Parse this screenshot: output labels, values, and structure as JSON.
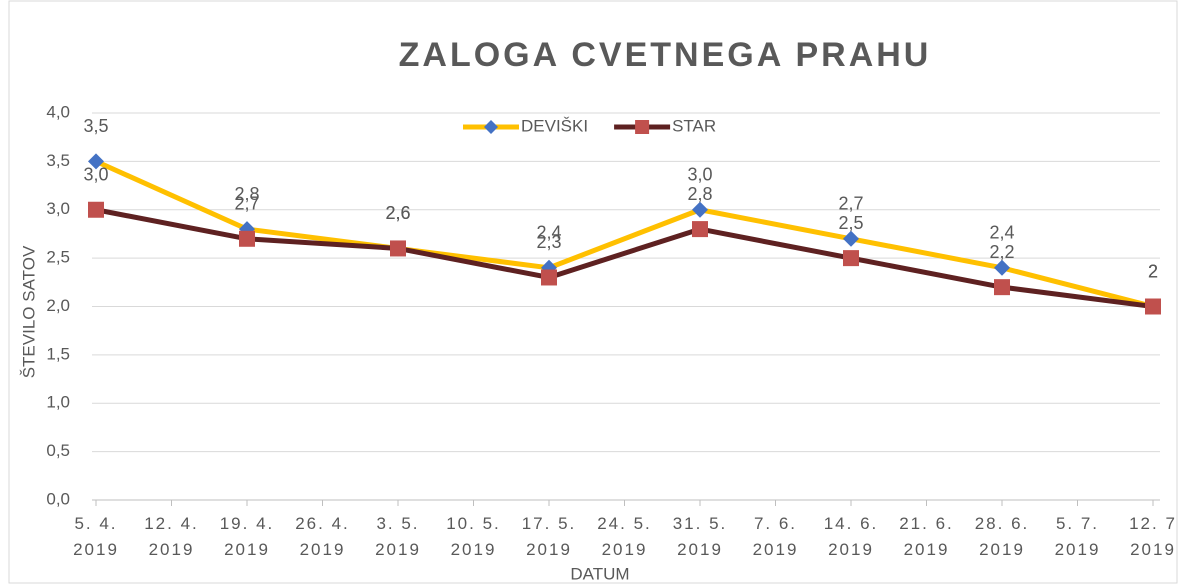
{
  "chart_data": {
    "type": "line",
    "title": "ZALOGA CVETNEGA PRAHU",
    "x_label": "DATUM",
    "y_label": "ŠTEVILO SATOV",
    "x": [
      "2019-04-05",
      "2019-04-19",
      "2019-05-03",
      "2019-05-17",
      "2019-05-31",
      "2019-06-14",
      "2019-06-28",
      "2019-07-12"
    ],
    "xlim": [
      "2019-04-05",
      "2019-07-12"
    ],
    "xticks": [
      {
        "value": "2019-04-05",
        "label": "5. 4. 2019"
      },
      {
        "value": "2019-04-12",
        "label": "12. 4. 2019"
      },
      {
        "value": "2019-04-19",
        "label": "19. 4. 2019"
      },
      {
        "value": "2019-04-26",
        "label": "26. 4. 2019"
      },
      {
        "value": "2019-05-03",
        "label": "3. 5. 2019"
      },
      {
        "value": "2019-05-10",
        "label": "10. 5. 2019"
      },
      {
        "value": "2019-05-17",
        "label": "17. 5. 2019"
      },
      {
        "value": "2019-05-24",
        "label": "24. 5. 2019"
      },
      {
        "value": "2019-05-31",
        "label": "31. 5. 2019"
      },
      {
        "value": "2019-06-07",
        "label": "7. 6. 2019"
      },
      {
        "value": "2019-06-14",
        "label": "14. 6. 2019"
      },
      {
        "value": "2019-06-21",
        "label": "21. 6. 2019"
      },
      {
        "value": "2019-06-28",
        "label": "28. 6. 2019"
      },
      {
        "value": "2019-07-05",
        "label": "5. 7. 2019"
      },
      {
        "value": "2019-07-12",
        "label": "12. 7 2019"
      }
    ],
    "ylim": [
      0,
      4
    ],
    "yticks": [
      {
        "value": 0,
        "label": "0,0"
      },
      {
        "value": 0.5,
        "label": "0,5"
      },
      {
        "value": 1,
        "label": "1,0"
      },
      {
        "value": 1.5,
        "label": "1,5"
      },
      {
        "value": 2,
        "label": "2,0"
      },
      {
        "value": 2.5,
        "label": "2,5"
      },
      {
        "value": 3,
        "label": "3,0"
      },
      {
        "value": 3.5,
        "label": "3,5"
      },
      {
        "value": 4,
        "label": "4,0"
      }
    ],
    "grid": true,
    "legend": "top",
    "series": [
      {
        "name": "DEVIŠKI",
        "color": "#FFC000",
        "marker_color": "#4472C4",
        "marker": "diamond",
        "values": [
          3.5,
          2.8,
          2.6,
          2.4,
          3.0,
          2.7,
          2.4,
          2.0
        ],
        "value_labels": [
          "3,5",
          "2,8",
          "2,6",
          "2,4",
          "3,0",
          "2,7",
          "2,4",
          "2"
        ]
      },
      {
        "name": "STAR",
        "color": "#5E2121",
        "marker_color": "#C0504D",
        "marker": "square",
        "values": [
          3.0,
          2.7,
          2.6,
          2.3,
          2.8,
          2.5,
          2.2,
          2.0
        ],
        "value_labels": [
          "3,0",
          "2,7",
          "2,6",
          "2,3",
          "2,8",
          "2,5",
          "2,2",
          "2"
        ]
      }
    ]
  }
}
